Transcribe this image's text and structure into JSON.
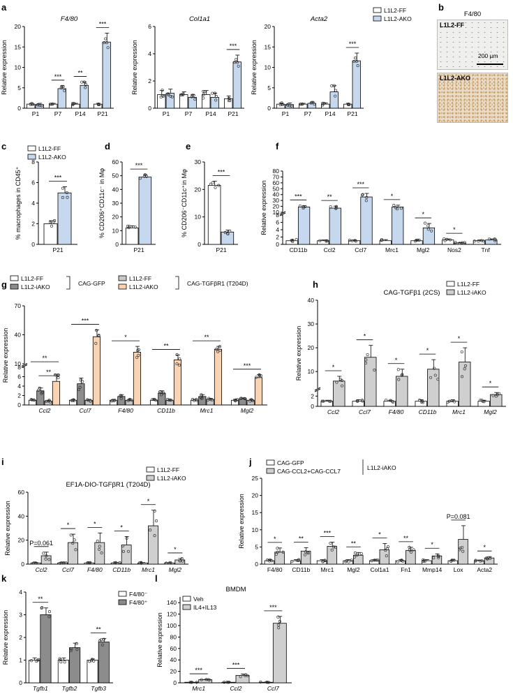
{
  "legends": {
    "ff_ako": [
      "L1L2-FF",
      "L1L2-AKO"
    ],
    "ff_iako": [
      "L1L2-FF",
      "L1L2-iAKO"
    ],
    "g_left": [
      "L1L2-FF",
      "L1L2-iAKO"
    ],
    "g_left_group": "CAG-GFP",
    "g_right": [
      "L1L2-FF",
      "L1L2-iAKO"
    ],
    "g_right_group": "CAG-TGFβR1 (T204D)",
    "j": [
      "CAG-GFP",
      "CAG-CCL2+CAG-CCL7"
    ],
    "j_group": "L1L2-iAKO",
    "k": [
      "F4/80⁻",
      "F4/80⁺"
    ],
    "l": [
      "Veh",
      "IL4+IL13"
    ]
  },
  "panel_b": {
    "letter": "b",
    "title": "F4/80",
    "top_label": "L1L2-FF",
    "bottom_label": "L1L2-AKO",
    "scale": "200 µm"
  },
  "chart_data": [
    {
      "id": "a1",
      "letter": "a",
      "type": "bar",
      "title": "F4/80",
      "ylabel": "Relative expression",
      "ylim": [
        0,
        20
      ],
      "yticks": [
        0,
        5,
        10,
        15,
        20
      ],
      "categories": [
        "P1",
        "P7",
        "P14",
        "P21"
      ],
      "series": [
        {
          "name": "L1L2-FF",
          "values": [
            1.0,
            1.0,
            1.0,
            1.0
          ],
          "err": [
            0.2,
            0.2,
            0.2,
            0.2
          ]
        },
        {
          "name": "L1L2-AKO",
          "values": [
            0.9,
            4.8,
            5.6,
            16.2
          ],
          "err": [
            0.3,
            0.7,
            0.8,
            2.2
          ]
        }
      ],
      "sig": [
        {
          "cat": 1,
          "text": "***"
        },
        {
          "cat": 2,
          "text": "**"
        },
        {
          "cat": 3,
          "text": "***"
        }
      ]
    },
    {
      "id": "a2",
      "type": "bar",
      "title": "Col1a1",
      "ylabel": "Relative expression",
      "ylim": [
        0,
        6
      ],
      "yticks": [
        0,
        2,
        4,
        6
      ],
      "categories": [
        "P1",
        "P7",
        "P14",
        "P21"
      ],
      "series": [
        {
          "name": "L1L2-FF",
          "values": [
            1.0,
            1.0,
            1.0,
            0.7
          ],
          "err": [
            0.3,
            0.2,
            0.3,
            0.2
          ]
        },
        {
          "name": "L1L2-AKO",
          "values": [
            1.1,
            0.8,
            0.8,
            3.4
          ],
          "err": [
            0.3,
            0.2,
            0.3,
            0.5
          ]
        }
      ],
      "sig": [
        {
          "cat": 3,
          "text": "***"
        }
      ]
    },
    {
      "id": "a3",
      "type": "bar",
      "title": "Acta2",
      "ylabel": "Relative expression",
      "ylim": [
        0,
        20
      ],
      "yticks": [
        0,
        5,
        10,
        15,
        20
      ],
      "categories": [
        "P1",
        "P7",
        "P14",
        "P21"
      ],
      "series": [
        {
          "name": "L1L2-FF",
          "values": [
            1.0,
            1.0,
            1.0,
            1.0
          ],
          "err": [
            0.3,
            0.2,
            0.3,
            0.2
          ]
        },
        {
          "name": "L1L2-AKO",
          "values": [
            0.9,
            1.2,
            4.0,
            11.6
          ],
          "err": [
            0.4,
            0.3,
            1.5,
            1.9
          ]
        }
      ],
      "sig": [
        {
          "cat": 3,
          "text": "***"
        }
      ]
    },
    {
      "id": "c",
      "letter": "c",
      "type": "bar",
      "title": "",
      "ylabel": "% macrophages in CD45⁺",
      "ylim": [
        0,
        8
      ],
      "yticks": [
        0,
        2,
        4,
        6,
        8
      ],
      "categories": [
        "P21"
      ],
      "series": [
        {
          "name": "L1L2-FF",
          "values": [
            2.0
          ],
          "err": [
            0.3
          ]
        },
        {
          "name": "L1L2-AKO",
          "values": [
            5.0
          ],
          "err": [
            0.6
          ]
        }
      ],
      "sig": [
        {
          "cat": 0,
          "text": "***"
        }
      ]
    },
    {
      "id": "d",
      "letter": "d",
      "type": "bar",
      "title": "",
      "ylabel": "% CD206⁺CD11c⁻ in Mφ",
      "ylim": [
        0,
        60
      ],
      "yticks": [
        0,
        10,
        20,
        30,
        40,
        50,
        60
      ],
      "categories": [
        "P21"
      ],
      "series": [
        {
          "name": "L1L2-FF",
          "values": [
            12
          ],
          "err": [
            1.5
          ]
        },
        {
          "name": "L1L2-AKO",
          "values": [
            49
          ],
          "err": [
            1.8
          ]
        }
      ],
      "sig": [
        {
          "cat": 0,
          "text": "***"
        }
      ]
    },
    {
      "id": "e",
      "letter": "e",
      "type": "bar",
      "title": "",
      "ylabel": "% CD206⁻CD11c⁺in Mφ",
      "ylim": [
        0,
        30
      ],
      "yticks": [
        0,
        10,
        20,
        30
      ],
      "categories": [
        "P21"
      ],
      "series": [
        {
          "name": "L1L2-FF",
          "values": [
            21.5
          ],
          "err": [
            1.5
          ]
        },
        {
          "name": "L1L2-AKO",
          "values": [
            4.5
          ],
          "err": [
            0.7
          ]
        }
      ],
      "sig": [
        {
          "cat": 0,
          "text": "***"
        }
      ]
    },
    {
      "id": "f",
      "letter": "f",
      "type": "bar",
      "title": "",
      "ylabel": "Relative expression",
      "ybreak": true,
      "lower": {
        "ylim": [
          0,
          8
        ],
        "yticks": [
          0,
          2,
          4,
          6,
          8
        ]
      },
      "upper": {
        "ylim": [
          10,
          80
        ],
        "yticks": [
          10,
          20,
          30,
          40,
          50,
          60,
          70,
          80
        ]
      },
      "categories": [
        "CD11b",
        "Ccl2",
        "Ccl7",
        "Mrc1",
        "Mgl2",
        "Nos2",
        "Tnf"
      ],
      "series": [
        {
          "name": "L1L2-FF",
          "values": [
            1.0,
            1.0,
            1.0,
            1.0,
            1.0,
            1.2,
            1.0
          ],
          "err": [
            0.3,
            0.2,
            0.2,
            0.3,
            0.2,
            0.3,
            0.2
          ]
        },
        {
          "name": "L1L2-AKO",
          "values": [
            19,
            17,
            36,
            19,
            4.5,
            0.4,
            1.2
          ],
          "err": [
            2.5,
            3.5,
            6,
            3,
            1.2,
            0.1,
            0.3
          ]
        }
      ],
      "sig": [
        {
          "cat": 0,
          "text": "***"
        },
        {
          "cat": 1,
          "text": "**"
        },
        {
          "cat": 2,
          "text": "***"
        },
        {
          "cat": 3,
          "text": "*"
        },
        {
          "cat": 4,
          "text": "*"
        },
        {
          "cat": 5,
          "text": "*"
        }
      ]
    },
    {
      "id": "g",
      "letter": "g",
      "type": "bar",
      "title": "",
      "ylabel": "Relative expression",
      "ybreak": true,
      "lower": {
        "ylim": [
          0,
          8
        ],
        "yticks": [
          0,
          2,
          4,
          6,
          8
        ]
      },
      "upper": {
        "ylim": [
          10,
          70
        ],
        "yticks": [
          10,
          40,
          70
        ]
      },
      "categories": [
        "Ccl2",
        "Ccl7",
        "F4/80",
        "CD11b",
        "Mrc1",
        "Mgl2"
      ],
      "series": [
        {
          "name": "L1L2-FF CAG-GFP",
          "values": [
            1.0,
            1.0,
            1.0,
            1.0,
            1.0,
            1.0
          ],
          "err": [
            0.2,
            0.2,
            0.2,
            0.2,
            0.2,
            0.2
          ]
        },
        {
          "name": "L1L2-iAKO CAG-GFP",
          "values": [
            3.0,
            4.5,
            1.8,
            2.5,
            1.8,
            1.3
          ],
          "err": [
            0.6,
            1.2,
            0.4,
            0.5,
            0.4,
            0.2
          ]
        },
        {
          "name": "L1L2-FF CAG-TGFβR1 (T204D)",
          "values": [
            0.8,
            1.0,
            1.0,
            1.0,
            1.2,
            1.0
          ],
          "err": [
            0.2,
            0.2,
            0.2,
            0.2,
            0.2,
            0.2
          ]
        },
        {
          "name": "L1L2-iAKO CAG-TGFβR1 (T204D)",
          "values": [
            5.0,
            38,
            22,
            14,
            25,
            5.8
          ],
          "err": [
            1.5,
            7,
            6,
            5,
            3,
            0.6
          ]
        }
      ],
      "sig": [
        {
          "cat": 0,
          "a": 0,
          "b": 3,
          "text": "**",
          "lvl": 0
        },
        {
          "cat": 0,
          "a": 1,
          "b": 3,
          "text": "**",
          "lvl": 1
        },
        {
          "cat": 1,
          "a": 0,
          "b": 3,
          "text": "***"
        },
        {
          "cat": 2,
          "a": 0,
          "b": 3,
          "text": "*"
        },
        {
          "cat": 3,
          "a": 0,
          "b": 3,
          "text": "**"
        },
        {
          "cat": 4,
          "a": 0,
          "b": 3,
          "text": "**"
        },
        {
          "cat": 5,
          "a": 0,
          "b": 3,
          "text": "***"
        }
      ]
    },
    {
      "id": "h",
      "letter": "h",
      "type": "bar",
      "title": "CAG-TGFβ1 (2CS)",
      "ylabel": "Relative expression",
      "ybreak": true,
      "lower": {
        "ylim": [
          0,
          3
        ],
        "yticks": [
          0,
          2
        ]
      },
      "upper": {
        "ylim": [
          3,
          40
        ],
        "yticks": [
          10,
          20,
          30,
          40
        ]
      },
      "categories": [
        "Ccl2",
        "Ccl7",
        "F4/80",
        "CD11b",
        "Mrc1",
        "Mgl2"
      ],
      "series": [
        {
          "name": "L1L2-FF",
          "values": [
            1.0,
            1.0,
            1.0,
            1.0,
            1.0,
            1.0
          ],
          "err": [
            0.2,
            0.3,
            0.2,
            0.3,
            0.3,
            0.2
          ]
        },
        {
          "name": "L1L2-iAKO",
          "values": [
            6,
            16,
            8,
            11,
            14,
            2.3
          ],
          "err": [
            2,
            5,
            3,
            4,
            6,
            0.4
          ]
        }
      ],
      "sig": [
        {
          "cat": 0,
          "text": "*"
        },
        {
          "cat": 1,
          "text": "*"
        },
        {
          "cat": 2,
          "text": "*"
        },
        {
          "cat": 3,
          "text": "*"
        },
        {
          "cat": 4,
          "text": "*"
        },
        {
          "cat": 5,
          "text": "*"
        }
      ]
    },
    {
      "id": "i",
      "letter": "i",
      "type": "bar",
      "title": "EF1A-DIO-TGFβR1 (T204D)",
      "ylabel": "Relative expression",
      "ylim": [
        0,
        60
      ],
      "yticks": [
        0,
        20,
        40,
        60
      ],
      "categories": [
        "Ccl2",
        "Ccl7",
        "F4/80",
        "CD11b",
        "Mrc1",
        "Mgl2"
      ],
      "series": [
        {
          "name": "L1L2-FF",
          "values": [
            1.0,
            1.0,
            1.0,
            1.0,
            1.0,
            1.0
          ],
          "err": [
            0.3,
            0.3,
            0.3,
            0.3,
            0.3,
            0.2
          ]
        },
        {
          "name": "L1L2-iAKO",
          "values": [
            7,
            18,
            18,
            16,
            32,
            3.5
          ],
          "err": [
            3,
            7,
            8,
            7,
            13,
            1.2
          ]
        }
      ],
      "sig": [
        {
          "cat": 0,
          "text": "P=0.061"
        },
        {
          "cat": 1,
          "text": "*"
        },
        {
          "cat": 2,
          "text": "*"
        },
        {
          "cat": 3,
          "text": "*"
        },
        {
          "cat": 4,
          "text": "*"
        },
        {
          "cat": 5,
          "text": "*"
        }
      ]
    },
    {
      "id": "j",
      "letter": "j",
      "type": "bar",
      "title": "",
      "ylabel": "Relative expression",
      "ylim": [
        0,
        25
      ],
      "yticks": [
        0,
        5,
        10,
        15,
        20,
        25
      ],
      "categories": [
        "F4/80",
        "CD11b",
        "Mrc1",
        "Mgl2",
        "Col1a1",
        "Fn1",
        "Mmp14",
        "Lox",
        "Acta2"
      ],
      "series": [
        {
          "name": "CAG-GFP",
          "values": [
            1.0,
            1.0,
            1.0,
            1.0,
            1.0,
            1.0,
            1.0,
            1.0,
            1.0
          ],
          "err": [
            0.3,
            0.3,
            0.3,
            0.3,
            0.3,
            0.3,
            0.3,
            0.3,
            0.2
          ]
        },
        {
          "name": "CAG-CCL2+CAG-CCL7",
          "values": [
            3.5,
            3.8,
            5.2,
            2.6,
            4.2,
            4.0,
            2.4,
            7.2,
            1.8
          ],
          "err": [
            1.2,
            1,
            1.2,
            0.8,
            1.8,
            0.9,
            0.6,
            4,
            0.4
          ]
        }
      ],
      "sig": [
        {
          "cat": 0,
          "text": "*"
        },
        {
          "cat": 1,
          "text": "**"
        },
        {
          "cat": 2,
          "text": "***"
        },
        {
          "cat": 3,
          "text": "**"
        },
        {
          "cat": 4,
          "text": "*"
        },
        {
          "cat": 5,
          "text": "**"
        },
        {
          "cat": 6,
          "text": "*"
        },
        {
          "cat": 7,
          "text": "P=0.081"
        },
        {
          "cat": 8,
          "text": "*"
        }
      ]
    },
    {
      "id": "k",
      "letter": "k",
      "type": "bar",
      "title": "",
      "ylabel": "Relative expression",
      "ylim": [
        0,
        4
      ],
      "yticks": [
        0,
        1,
        2,
        3,
        4
      ],
      "categories": [
        "Tgfb1",
        "Tgfb2",
        "Tgfb3"
      ],
      "series": [
        {
          "name": "F4/80⁻",
          "values": [
            1.0,
            1.0,
            1.0
          ],
          "err": [
            0.1,
            0.1,
            0.05
          ]
        },
        {
          "name": "F4/80⁺",
          "values": [
            3.0,
            1.55,
            1.8
          ],
          "err": [
            0.3,
            0.2,
            0.15
          ]
        }
      ],
      "sig": [
        {
          "cat": 0,
          "text": "**"
        },
        {
          "cat": 2,
          "text": "**"
        }
      ]
    },
    {
      "id": "l",
      "letter": "l",
      "type": "bar",
      "title": "BMDM",
      "ylabel": "Relative expression",
      "ylim": [
        0,
        150
      ],
      "yticks": [
        0,
        20,
        40,
        60,
        80,
        100,
        120,
        140
      ],
      "categories": [
        "Mrc1",
        "Ccl2",
        "Ccl7"
      ],
      "series": [
        {
          "name": "Veh",
          "values": [
            1.0,
            1.0,
            1.0
          ],
          "err": [
            0.2,
            0.3,
            0.3
          ]
        },
        {
          "name": "IL4+IL13",
          "values": [
            5.5,
            13,
            104
          ],
          "err": [
            0.5,
            2.5,
            12
          ]
        }
      ],
      "sig": [
        {
          "cat": 0,
          "text": "***"
        },
        {
          "cat": 1,
          "text": "***"
        },
        {
          "cat": 2,
          "text": "***"
        }
      ]
    }
  ]
}
